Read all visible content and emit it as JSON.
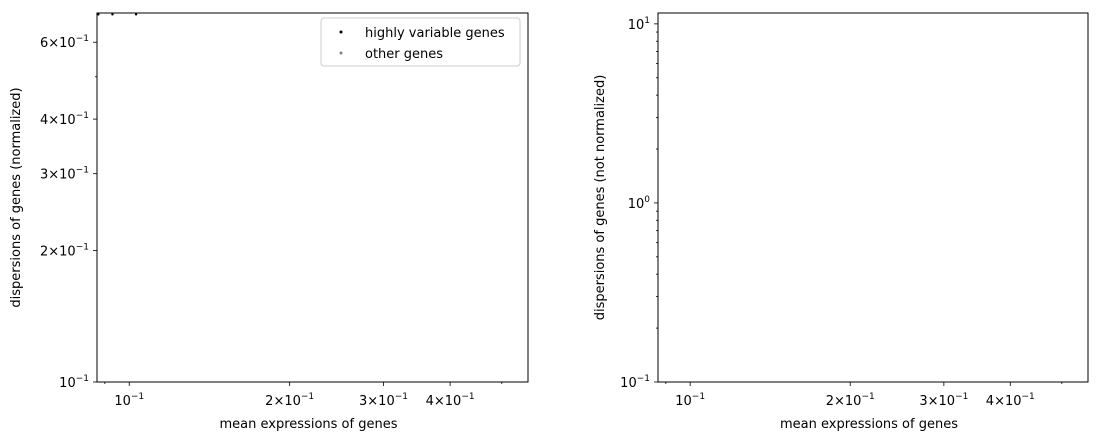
{
  "chart_data": [
    {
      "type": "scatter",
      "title": "",
      "xlabel": "mean expressions of genes",
      "ylabel": "dispersions of genes (normalized)",
      "xscale": "log",
      "yscale": "log",
      "xlim": [
        0.087,
        0.56
      ],
      "ylim": [
        0.1,
        0.7
      ],
      "x_ticks": [
        {
          "value": 0.1,
          "base": "10",
          "exp": "−1"
        },
        {
          "value": 0.2,
          "base": "2×10",
          "exp": "−1"
        },
        {
          "value": 0.3,
          "base": "3×10",
          "exp": "−1"
        },
        {
          "value": 0.4,
          "base": "4×10",
          "exp": "−1"
        }
      ],
      "y_ticks": [
        {
          "value": 0.1,
          "base": "10",
          "exp": "−1"
        },
        {
          "value": 0.2,
          "base": "2×10",
          "exp": "−1"
        },
        {
          "value": 0.3,
          "base": "3×10",
          "exp": "−1"
        },
        {
          "value": 0.4,
          "base": "4×10",
          "exp": "−1"
        },
        {
          "value": 0.6,
          "base": "6×10",
          "exp": "−1"
        }
      ],
      "grid": false,
      "legend": {
        "position": "top-right",
        "entries": [
          {
            "label": "highly variable genes",
            "color": "#000000"
          },
          {
            "label": "other genes",
            "color": "#808080"
          }
        ]
      },
      "series": [
        {
          "color": "#000000",
          "points": [
            [
              0.0875,
              0.695
            ],
            [
              0.093,
              0.695
            ],
            [
              0.103,
              0.695
            ]
          ]
        },
        {
          "color": "#808080",
          "points": []
        }
      ]
    },
    {
      "type": "scatter",
      "title": "",
      "xlabel": "mean expressions of genes",
      "ylabel": "dispersions of genes (not normalized)",
      "xscale": "log",
      "yscale": "log",
      "xlim": [
        0.087,
        0.56
      ],
      "ylim": [
        0.1,
        11.5
      ],
      "x_ticks": [
        {
          "value": 0.1,
          "base": "10",
          "exp": "−1"
        },
        {
          "value": 0.2,
          "base": "2×10",
          "exp": "−1"
        },
        {
          "value": 0.3,
          "base": "3×10",
          "exp": "−1"
        },
        {
          "value": 0.4,
          "base": "4×10",
          "exp": "−1"
        }
      ],
      "y_ticks": [
        {
          "value": 0.1,
          "base": "10",
          "exp": "−1"
        },
        {
          "value": 1,
          "base": "10",
          "exp": "0"
        },
        {
          "value": 10,
          "base": "10",
          "exp": "1"
        }
      ],
      "grid": false,
      "legend": null,
      "series": [
        {
          "color": "#000000",
          "points": []
        },
        {
          "color": "#808080",
          "points": []
        }
      ]
    }
  ]
}
